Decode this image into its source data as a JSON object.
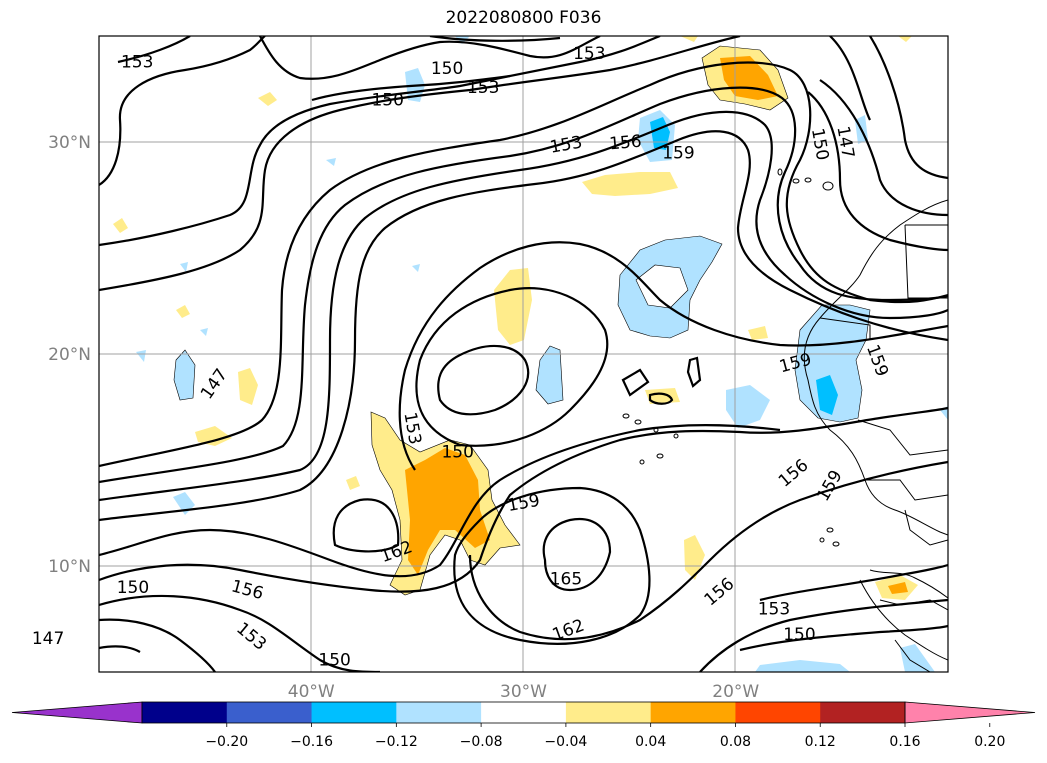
{
  "title": "2022080800 F036",
  "map": {
    "lat_ticks": [
      {
        "lat": 30,
        "label": "30°N"
      },
      {
        "lat": 20,
        "label": "20°N"
      },
      {
        "lat": 10,
        "label": "10°N"
      }
    ],
    "lon_ticks": [
      {
        "lon": -40,
        "label": "40°W"
      },
      {
        "lon": -30,
        "label": "30°W"
      },
      {
        "lon": -20,
        "label": "20°W"
      }
    ],
    "contour_labels": [
      {
        "text": "153",
        "lon": -48.2,
        "lat": 33.8,
        "rot": 0
      },
      {
        "text": "153",
        "lon": -26.9,
        "lat": 34.2,
        "rot": 0
      },
      {
        "text": "150",
        "lon": -36.4,
        "lat": 32.0,
        "rot": 0
      },
      {
        "text": "150",
        "lon": -33.6,
        "lat": 33.5,
        "rot": 0
      },
      {
        "text": "153",
        "lon": -31.9,
        "lat": 32.6,
        "rot": 0
      },
      {
        "text": "153",
        "lon": -28.0,
        "lat": 29.9,
        "rot": -10
      },
      {
        "text": "156",
        "lon": -25.2,
        "lat": 30.0,
        "rot": -5
      },
      {
        "text": "159",
        "lon": -22.7,
        "lat": 29.5,
        "rot": 0
      },
      {
        "text": "150",
        "lon": -16.0,
        "lat": 29.9,
        "rot": 80
      },
      {
        "text": "147",
        "lon": -14.8,
        "lat": 30.0,
        "rot": 80
      },
      {
        "text": "147",
        "lon": -44.6,
        "lat": 18.6,
        "rot": -55
      },
      {
        "text": "153",
        "lon": -35.2,
        "lat": 16.5,
        "rot": 80
      },
      {
        "text": "150",
        "lon": -33.1,
        "lat": 15.4,
        "rot": 0
      },
      {
        "text": "159",
        "lon": -30.0,
        "lat": 13.0,
        "rot": -10
      },
      {
        "text": "162",
        "lon": -36.0,
        "lat": 10.7,
        "rot": -20
      },
      {
        "text": "165",
        "lon": -28.0,
        "lat": 9.4,
        "rot": 0
      },
      {
        "text": "162",
        "lon": -27.9,
        "lat": 7.0,
        "rot": -20
      },
      {
        "text": "156",
        "lon": -43.0,
        "lat": 8.9,
        "rot": 15
      },
      {
        "text": "150",
        "lon": -48.4,
        "lat": 9.0,
        "rot": 0
      },
      {
        "text": "153",
        "lon": -42.8,
        "lat": 6.7,
        "rot": 40
      },
      {
        "text": "147",
        "lon": -52.4,
        "lat": 6.6,
        "rot": 0
      },
      {
        "text": "150",
        "lon": -38.9,
        "lat": 5.6,
        "rot": 0
      },
      {
        "text": "156",
        "lon": -20.8,
        "lat": 8.8,
        "rot": -40
      },
      {
        "text": "153",
        "lon": -18.2,
        "lat": 8.0,
        "rot": 0
      },
      {
        "text": "150",
        "lon": -17.0,
        "lat": 6.8,
        "rot": 0
      },
      {
        "text": "156",
        "lon": -17.3,
        "lat": 14.4,
        "rot": -40
      },
      {
        "text": "159",
        "lon": -15.6,
        "lat": 13.8,
        "rot": -60
      },
      {
        "text": "159",
        "lon": -17.2,
        "lat": 19.6,
        "rot": -15
      },
      {
        "text": "159",
        "lon": -13.3,
        "lat": 19.7,
        "rot": 70
      }
    ]
  },
  "colorbar": {
    "colors": [
      "#9932CC",
      "#00008B",
      "#3A5FCD",
      "#00BFFF",
      "#B0E2FF",
      "#FFFFFF",
      "#FFEC8B",
      "#FFA500",
      "#FF4500",
      "#B22222",
      "#FF82AB"
    ],
    "ticks": [
      "−0.20",
      "−0.16",
      "−0.12",
      "−0.08",
      "−0.04",
      "0.04",
      "0.08",
      "0.12",
      "0.16",
      "0.20"
    ]
  }
}
